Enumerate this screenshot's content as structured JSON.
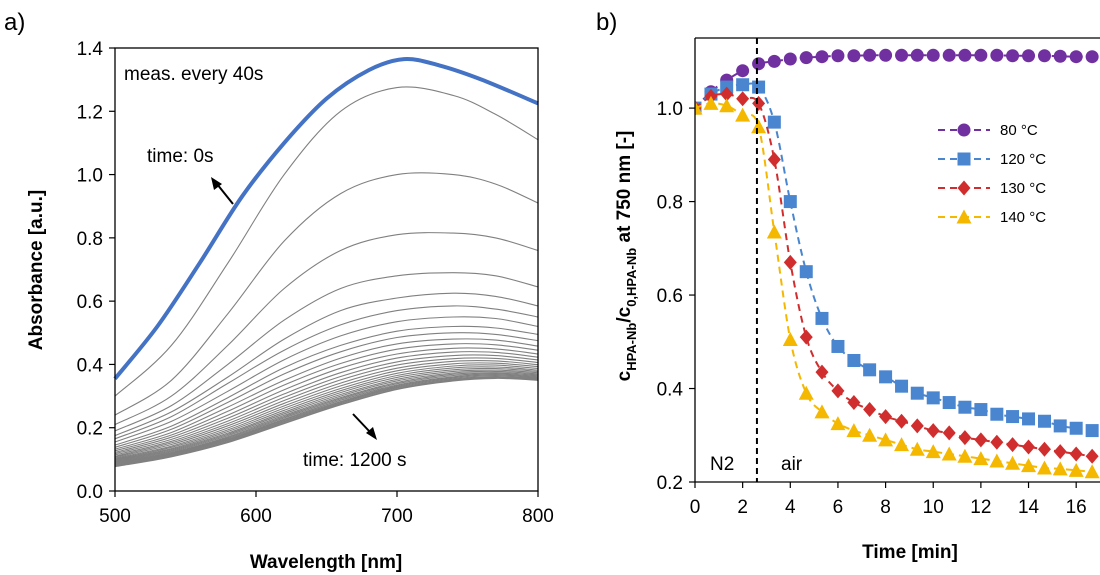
{
  "chart_data": [
    {
      "panel_label": "a)",
      "type": "line",
      "xlabel": "Wavelength [nm]",
      "ylabel": "Absorbance [a.u.]",
      "xlim": [
        500,
        800
      ],
      "ylim": [
        0,
        1.4
      ],
      "xticks": [
        500,
        600,
        700,
        800
      ],
      "yticks": [
        0.0,
        0.2,
        0.4,
        0.6,
        0.8,
        1.0,
        1.2,
        1.4
      ],
      "ytick_labels": [
        "0.0",
        "0.2",
        "0.4",
        "0.6",
        "0.8",
        "1.0",
        "1.2",
        "1.4"
      ],
      "grid": false,
      "colors": {
        "highlight": "#4472c4",
        "curves": "#808080"
      },
      "annotations": [
        {
          "id": "meas",
          "text": "meas. every 40s"
        },
        {
          "id": "t0",
          "text": "time: 0s"
        },
        {
          "id": "t1200",
          "text": "time: 1200 s"
        }
      ],
      "series": [
        {
          "x": [
            500,
            530,
            560,
            590,
            620,
            650,
            680,
            705,
            730,
            760,
            800
          ],
          "y": [
            0.355,
            0.52,
            0.72,
            0.93,
            1.1,
            1.24,
            1.33,
            1.365,
            1.345,
            1.3,
            1.225
          ],
          "highlight": true
        },
        {
          "x": [
            500,
            540,
            580,
            620,
            660,
            700,
            740,
            770,
            800
          ],
          "y": [
            0.3,
            0.46,
            0.72,
            1.0,
            1.2,
            1.275,
            1.25,
            1.19,
            1.11
          ]
        },
        {
          "x": [
            500,
            540,
            580,
            620,
            660,
            700,
            740,
            770,
            800
          ],
          "y": [
            0.24,
            0.35,
            0.56,
            0.79,
            0.94,
            1.0,
            1.0,
            0.97,
            0.91
          ]
        },
        {
          "x": [
            500,
            540,
            580,
            620,
            660,
            700,
            740,
            770,
            800
          ],
          "y": [
            0.21,
            0.3,
            0.46,
            0.64,
            0.76,
            0.81,
            0.815,
            0.8,
            0.76
          ]
        },
        {
          "x": [
            500,
            540,
            580,
            620,
            660,
            700,
            740,
            770,
            800
          ],
          "y": [
            0.19,
            0.27,
            0.4,
            0.54,
            0.64,
            0.68,
            0.69,
            0.68,
            0.645
          ]
        },
        {
          "x": [
            500,
            540,
            580,
            620,
            660,
            700,
            740,
            770,
            800
          ],
          "y": [
            0.175,
            0.25,
            0.36,
            0.48,
            0.57,
            0.61,
            0.625,
            0.615,
            0.585
          ]
        },
        {
          "x": [
            500,
            540,
            580,
            620,
            660,
            700,
            740,
            770,
            800
          ],
          "y": [
            0.165,
            0.235,
            0.34,
            0.445,
            0.525,
            0.57,
            0.585,
            0.575,
            0.55
          ]
        },
        {
          "x": [
            500,
            540,
            580,
            620,
            660,
            700,
            740,
            770,
            800
          ],
          "y": [
            0.155,
            0.22,
            0.315,
            0.415,
            0.49,
            0.535,
            0.55,
            0.545,
            0.52
          ]
        },
        {
          "x": [
            500,
            540,
            580,
            620,
            660,
            700,
            740,
            770,
            800
          ],
          "y": [
            0.145,
            0.205,
            0.295,
            0.39,
            0.46,
            0.505,
            0.52,
            0.515,
            0.495
          ]
        },
        {
          "x": [
            500,
            540,
            580,
            620,
            660,
            700,
            740,
            770,
            800
          ],
          "y": [
            0.138,
            0.195,
            0.28,
            0.37,
            0.44,
            0.485,
            0.5,
            0.495,
            0.475
          ]
        },
        {
          "x": [
            500,
            540,
            580,
            620,
            660,
            700,
            740,
            770,
            800
          ],
          "y": [
            0.132,
            0.185,
            0.265,
            0.35,
            0.42,
            0.465,
            0.48,
            0.477,
            0.458
          ]
        },
        {
          "x": [
            500,
            540,
            580,
            620,
            660,
            700,
            740,
            770,
            800
          ],
          "y": [
            0.127,
            0.177,
            0.252,
            0.335,
            0.403,
            0.448,
            0.465,
            0.462,
            0.445
          ]
        },
        {
          "x": [
            500,
            540,
            580,
            620,
            660,
            700,
            740,
            770,
            800
          ],
          "y": [
            0.122,
            0.17,
            0.24,
            0.32,
            0.388,
            0.433,
            0.451,
            0.449,
            0.433
          ]
        },
        {
          "x": [
            500,
            540,
            580,
            620,
            660,
            700,
            740,
            770,
            800
          ],
          "y": [
            0.118,
            0.163,
            0.23,
            0.307,
            0.374,
            0.42,
            0.439,
            0.438,
            0.423
          ]
        },
        {
          "x": [
            500,
            540,
            580,
            620,
            660,
            700,
            740,
            770,
            800
          ],
          "y": [
            0.114,
            0.157,
            0.221,
            0.296,
            0.362,
            0.408,
            0.428,
            0.428,
            0.414
          ]
        },
        {
          "x": [
            500,
            540,
            580,
            620,
            660,
            700,
            740,
            770,
            800
          ],
          "y": [
            0.11,
            0.152,
            0.213,
            0.286,
            0.351,
            0.398,
            0.418,
            0.419,
            0.406
          ]
        },
        {
          "x": [
            500,
            540,
            580,
            620,
            660,
            700,
            740,
            770,
            800
          ],
          "y": [
            0.107,
            0.147,
            0.206,
            0.277,
            0.341,
            0.388,
            0.41,
            0.411,
            0.399
          ]
        },
        {
          "x": [
            500,
            540,
            580,
            620,
            660,
            700,
            740,
            770,
            800
          ],
          "y": [
            0.104,
            0.142,
            0.199,
            0.269,
            0.332,
            0.38,
            0.402,
            0.404,
            0.393
          ]
        },
        {
          "x": [
            500,
            540,
            580,
            620,
            660,
            700,
            740,
            770,
            800
          ],
          "y": [
            0.101,
            0.138,
            0.193,
            0.262,
            0.324,
            0.372,
            0.395,
            0.398,
            0.387
          ]
        },
        {
          "x": [
            500,
            540,
            580,
            620,
            660,
            700,
            740,
            770,
            800
          ],
          "y": [
            0.099,
            0.134,
            0.188,
            0.255,
            0.317,
            0.365,
            0.389,
            0.392,
            0.382
          ]
        },
        {
          "x": [
            500,
            540,
            580,
            620,
            660,
            700,
            740,
            770,
            800
          ],
          "y": [
            0.097,
            0.131,
            0.183,
            0.249,
            0.311,
            0.359,
            0.383,
            0.387,
            0.378
          ]
        },
        {
          "x": [
            500,
            540,
            580,
            620,
            660,
            700,
            740,
            770,
            800
          ],
          "y": [
            0.095,
            0.128,
            0.179,
            0.244,
            0.305,
            0.353,
            0.378,
            0.382,
            0.374
          ]
        },
        {
          "x": [
            500,
            540,
            580,
            620,
            660,
            700,
            740,
            770,
            800
          ],
          "y": [
            0.093,
            0.125,
            0.175,
            0.239,
            0.3,
            0.348,
            0.373,
            0.378,
            0.37
          ]
        },
        {
          "x": [
            500,
            540,
            580,
            620,
            660,
            700,
            740,
            770,
            800
          ],
          "y": [
            0.091,
            0.122,
            0.171,
            0.235,
            0.295,
            0.343,
            0.369,
            0.374,
            0.367
          ]
        },
        {
          "x": [
            500,
            540,
            580,
            620,
            660,
            700,
            740,
            770,
            800
          ],
          "y": [
            0.089,
            0.12,
            0.168,
            0.231,
            0.291,
            0.339,
            0.365,
            0.371,
            0.364
          ]
        },
        {
          "x": [
            500,
            540,
            580,
            620,
            660,
            700,
            740,
            770,
            800
          ],
          "y": [
            0.087,
            0.118,
            0.165,
            0.227,
            0.287,
            0.335,
            0.361,
            0.368,
            0.361
          ]
        },
        {
          "x": [
            500,
            540,
            580,
            620,
            660,
            700,
            740,
            770,
            800
          ],
          "y": [
            0.085,
            0.116,
            0.162,
            0.224,
            0.283,
            0.332,
            0.358,
            0.365,
            0.358
          ]
        },
        {
          "x": [
            500,
            540,
            580,
            620,
            660,
            700,
            740,
            770,
            800
          ],
          "y": [
            0.083,
            0.114,
            0.16,
            0.221,
            0.28,
            0.329,
            0.355,
            0.362,
            0.356
          ]
        },
        {
          "x": [
            500,
            540,
            580,
            620,
            660,
            700,
            740,
            770,
            800
          ],
          "y": [
            0.081,
            0.112,
            0.157,
            0.218,
            0.277,
            0.326,
            0.352,
            0.36,
            0.354
          ]
        },
        {
          "x": [
            500,
            540,
            580,
            620,
            660,
            700,
            740,
            770,
            800
          ],
          "y": [
            0.079,
            0.11,
            0.155,
            0.215,
            0.274,
            0.323,
            0.35,
            0.358,
            0.352
          ]
        },
        {
          "x": [
            500,
            540,
            580,
            620,
            660,
            700,
            740,
            770,
            800
          ],
          "y": [
            0.077,
            0.108,
            0.153,
            0.213,
            0.272,
            0.321,
            0.348,
            0.356,
            0.35
          ]
        }
      ]
    },
    {
      "panel_label": "b)",
      "type": "scatter",
      "xlabel": "Time [min]",
      "ylabel_parts": {
        "c1": "c",
        "sub1": "HPA-Nb",
        "slash": "/c",
        "sub2": "0,HPA-Nb",
        "rest": " at 750 nm [-]"
      },
      "xlim": [
        0,
        17
      ],
      "ylim": [
        0.2,
        1.15
      ],
      "xticks": [
        0,
        2,
        4,
        6,
        8,
        10,
        12,
        14,
        16
      ],
      "yticks": [
        0.2,
        0.4,
        0.6,
        0.8,
        1.0
      ],
      "ytick_labels": [
        "0.2",
        "0.4",
        "0.6",
        "0.8",
        "1.0"
      ],
      "grid": false,
      "legend_position": "top-right",
      "divider": {
        "x": 2.6,
        "left_label": "N2",
        "right_label": "air"
      },
      "x": [
        0,
        0.67,
        1.33,
        2.0,
        2.67,
        3.33,
        4.0,
        4.67,
        5.33,
        6.0,
        6.67,
        7.33,
        8.0,
        8.67,
        9.33,
        10.0,
        10.67,
        11.33,
        12.0,
        12.67,
        13.33,
        14.0,
        14.67,
        15.33,
        16.0,
        16.67
      ],
      "series": [
        {
          "name": "80 °C",
          "marker": "circle",
          "color": "#7030a0",
          "values": [
            1.0,
            1.035,
            1.06,
            1.08,
            1.095,
            1.1,
            1.105,
            1.108,
            1.11,
            1.112,
            1.112,
            1.113,
            1.113,
            1.113,
            1.113,
            1.113,
            1.113,
            1.113,
            1.113,
            1.113,
            1.112,
            1.112,
            1.112,
            1.111,
            1.11,
            1.11
          ]
        },
        {
          "name": "120 °C",
          "marker": "square",
          "color": "#4a86d0",
          "values": [
            1.0,
            1.03,
            1.045,
            1.05,
            1.045,
            0.97,
            0.8,
            0.65,
            0.55,
            0.49,
            0.46,
            0.44,
            0.425,
            0.405,
            0.39,
            0.38,
            0.37,
            0.36,
            0.355,
            0.345,
            0.34,
            0.335,
            0.33,
            0.32,
            0.315,
            0.31
          ]
        },
        {
          "name": "130 °C",
          "marker": "diamond",
          "color": "#d02e2e",
          "values": [
            1.0,
            1.025,
            1.03,
            1.02,
            1.01,
            0.89,
            0.67,
            0.51,
            0.435,
            0.395,
            0.37,
            0.355,
            0.34,
            0.33,
            0.32,
            0.31,
            0.305,
            0.295,
            0.29,
            0.285,
            0.28,
            0.275,
            0.27,
            0.265,
            0.26,
            0.255
          ]
        },
        {
          "name": "140 °C",
          "marker": "triangle",
          "color": "#f5b800",
          "values": [
            1.0,
            1.01,
            1.005,
            0.985,
            0.96,
            0.735,
            0.505,
            0.39,
            0.35,
            0.325,
            0.31,
            0.3,
            0.29,
            0.28,
            0.27,
            0.265,
            0.26,
            0.255,
            0.25,
            0.245,
            0.24,
            0.235,
            0.23,
            0.228,
            0.225,
            0.222
          ]
        }
      ]
    }
  ]
}
